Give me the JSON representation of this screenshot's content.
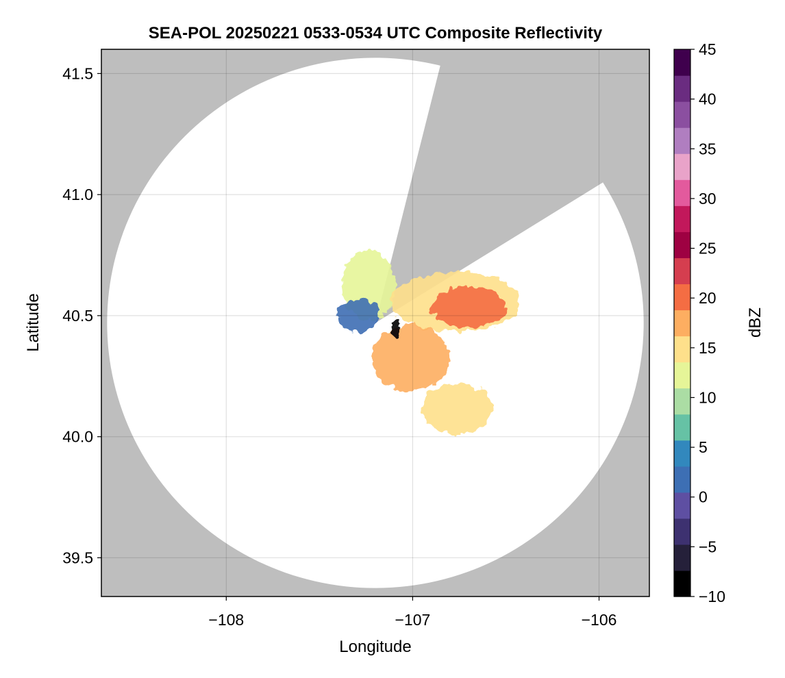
{
  "chart_data": {
    "type": "heatmap",
    "title": "SEA-POL 20250221 0533-0534 UTC Composite Reflectivity",
    "xlabel": "Longitude",
    "ylabel": "Latitude",
    "xlim": [
      -108.67,
      -105.73
    ],
    "ylim": [
      39.34,
      41.6
    ],
    "xticks": [
      -108,
      -107,
      -106
    ],
    "xtick_labels": [
      "−108",
      "−107",
      "−106"
    ],
    "yticks": [
      39.5,
      40.0,
      40.5,
      41.0,
      41.5
    ],
    "ytick_labels": [
      "39.5",
      "40.0",
      "40.5",
      "41.0",
      "41.5"
    ],
    "grid": true,
    "background_color": "#bebebe",
    "coverage_color": "#ffffff",
    "radar_center": {
      "lon": -107.2,
      "lat": 40.47
    },
    "radar_range_deg_lat": 1.095,
    "blocked_sector_azimuths_deg": [
      [
        14,
        58
      ]
    ],
    "colorbar": {
      "label": "dBZ",
      "range": [
        -10,
        45
      ],
      "ticks": [
        -10,
        -5,
        0,
        5,
        10,
        15,
        20,
        25,
        30,
        35,
        40,
        45
      ],
      "tick_labels": [
        "−10",
        "−5",
        "0",
        "5",
        "10",
        "15",
        "20",
        "25",
        "30",
        "35",
        "40",
        "45"
      ],
      "colormap": [
        "#000000",
        "#25203a",
        "#3d3170",
        "#5e4fa2",
        "#3d6fb4",
        "#3288bd",
        "#66c2a5",
        "#abdda4",
        "#e6f598",
        "#fee08b",
        "#fdae61",
        "#f46d43",
        "#d53e4f",
        "#9e0142",
        "#c2185b",
        "#e35a9d",
        "#e9a3c9",
        "#b07ec0",
        "#8b4fa0",
        "#6a2c80",
        "#3f004d"
      ]
    },
    "echo_regions": [
      {
        "name": "north-lobe",
        "lon": [
          -107.38,
          -107.09
        ],
        "lat": [
          40.48,
          40.77
        ],
        "dbz": 13
      },
      {
        "name": "east-band",
        "lon": [
          -107.12,
          -106.42
        ],
        "lat": [
          40.43,
          40.68
        ],
        "dbz": 16
      },
      {
        "name": "east-core",
        "lon": [
          -106.9,
          -106.5
        ],
        "lat": [
          40.45,
          40.62
        ],
        "dbz": 21
      },
      {
        "name": "southeast-band",
        "lon": [
          -107.22,
          -106.8
        ],
        "lat": [
          40.19,
          40.46
        ],
        "dbz": 17
      },
      {
        "name": "south-band",
        "lon": [
          -106.95,
          -106.57
        ],
        "lat": [
          40.01,
          40.22
        ],
        "dbz": 15
      },
      {
        "name": "west-cluster",
        "lon": [
          -107.4,
          -107.18
        ],
        "lat": [
          40.43,
          40.57
        ],
        "dbz": 1
      },
      {
        "name": "near-radar-core",
        "lon": [
          -107.12,
          -107.07
        ],
        "lat": [
          40.41,
          40.48
        ],
        "dbz": -8
      }
    ]
  }
}
